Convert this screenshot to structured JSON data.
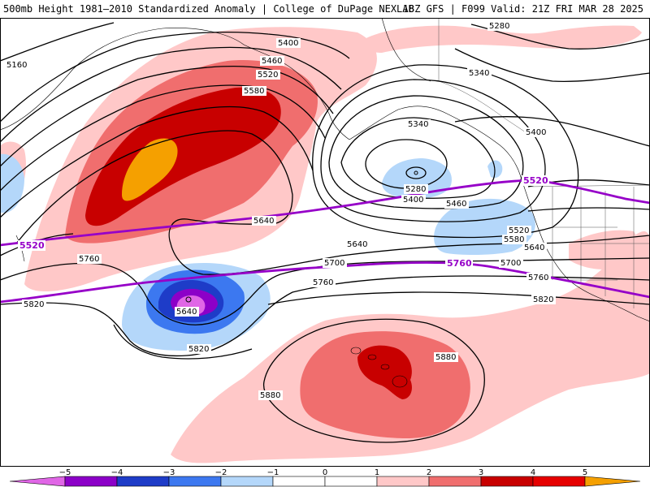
{
  "header": {
    "left": "500mb Height 1981–2010 Standardized Anomaly | College of DuPage NEXLAB",
    "right": "18Z GFS | F099 Valid: 21Z FRI MAR 28 2025"
  },
  "colors": {
    "neg5": "#e066e6",
    "neg4": "#8c00c8",
    "neg3": "#1e3cc8",
    "neg2": "#3c78f0",
    "neg1": "#b4d7fa",
    "pos1": "#ffc8c8",
    "pos2": "#f06e6e",
    "pos3": "#c80000",
    "pos4": "#e60000",
    "pos5": "#f5a000",
    "highlight": "#9600c8"
  },
  "colorbar": {
    "ticks": [
      "−5",
      "−4",
      "−3",
      "−2",
      "−1",
      "0",
      "1",
      "2",
      "3",
      "4",
      "5"
    ]
  },
  "contour_labels": {
    "l5160": "5160",
    "l5400a": "5400",
    "l5460a": "5460",
    "l5520a": "5520",
    "l5580a": "5580",
    "l5280a": "5280",
    "l5340a": "5340",
    "l5340b": "5340",
    "l5400b": "5400",
    "l5280b": "5280",
    "l5400c": "5400",
    "l5460b": "5460",
    "l5520b": "5520",
    "l5580b": "5580",
    "l5640a": "5640",
    "l5640b": "5640",
    "l5640c": "5640",
    "l5640d": "5640",
    "l5700a": "5700",
    "l5700b": "5700",
    "l5760a": "5760",
    "l5760b": "5760",
    "l5760c": "5760",
    "l5820a": "5820",
    "l5820b": "5820",
    "l5820c": "5820",
    "l5880a": "5880",
    "l5880b": "5880",
    "h5520a": "5520",
    "h5520b": "5520",
    "h5760": "5760"
  }
}
